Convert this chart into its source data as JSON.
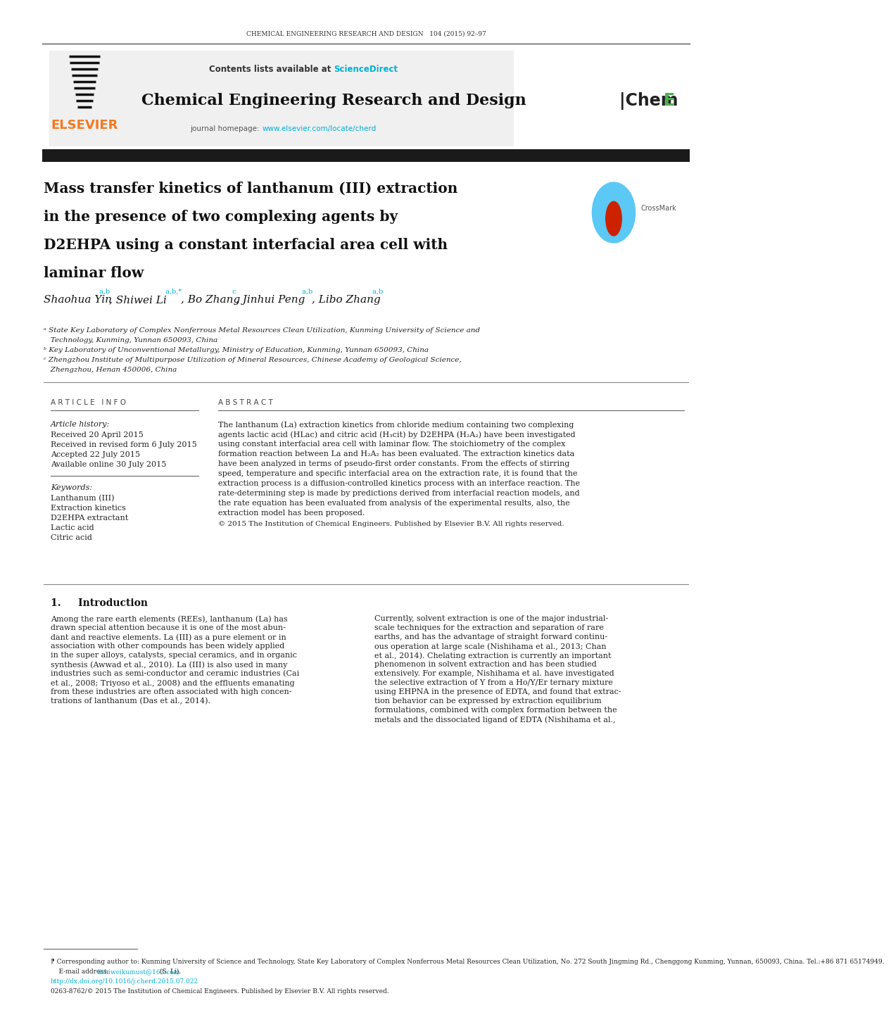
{
  "page_width": 10.2,
  "page_height": 14.32,
  "bg_color": "#ffffff",
  "header_journal": "CHEMICAL ENGINEERING RESEARCH AND DESIGN   104 (2015) 92–97",
  "journal_title": "Chemical Engineering Research and Design",
  "contents_text": "Contents lists available at ",
  "sciencedirect_text": "ScienceDirect",
  "sciencedirect_color": "#00b0d7",
  "homepage_text": "journal homepage: ",
  "homepage_url": "www.elsevier.com/locate/cherd",
  "homepage_url_color": "#00b0d7",
  "elsevier_color": "#f47920",
  "elsevier_text": "ELSEVIER",
  "article_title_line1": "Mass transfer kinetics of lanthanum (III) extraction",
  "article_title_line2": "in the presence of two complexing agents by",
  "article_title_line3": "D2EHPA using a constant interfacial area cell with",
  "article_title_line4": "laminar flow",
  "author_superscript_color": "#00b0d7",
  "article_info_header": "A R T I C L E   I N F O",
  "abstract_header": "A B S T R A C T",
  "article_history_label": "Article history:",
  "received": "Received 20 April 2015",
  "revised": "Received in revised form 6 July 2015",
  "accepted": "Accepted 22 July 2015",
  "available": "Available online 30 July 2015",
  "keywords_label": "Keywords:",
  "keywords": [
    "Lanthanum (III)",
    "Extraction kinetics",
    "D2EHPA extractant",
    "Lactic acid",
    "Citric acid"
  ],
  "copyright_text": "© 2015 The Institution of Chemical Engineers. Published by Elsevier B.V. All rights reserved.",
  "intro_header": "1.     Introduction",
  "footnote_star": "⁋ Corresponding author to: Kunming University of Science and Technology, State Key Laboratory of Complex Nonferrous Metal Resources Clean Utilization, No. 272 South Jingming Rd., Chenggong Kunming, Yunnan, 650093, China. Tel.:+86 871 65174949.",
  "footnote_email_label": "E-mail address: ",
  "footnote_email_link": "lishiweikumust@163.com",
  "footnote_email_suffix": " (S. Li).",
  "footnote_doi": "http://dx.doi.org/10.1016/j.cherd.2015.07.022",
  "footnote_issn": "0263-8762/© 2015 The Institution of Chemical Engineers. Published by Elsevier B.V. All rights reserved.",
  "black_bar_color": "#1a1a1a"
}
